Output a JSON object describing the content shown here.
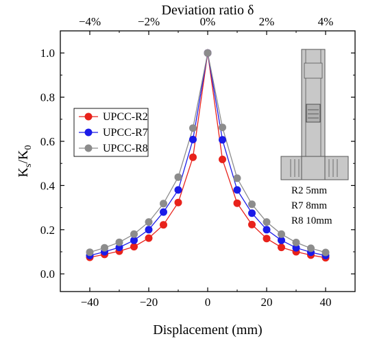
{
  "chart_data": {
    "type": "line",
    "xlabel": "Displacement (mm)",
    "ylabel": "K",
    "ylabel_sub_1": "s",
    "ylabel_slash": "/K",
    "ylabel_sub_2": "0",
    "top_xlabel": "Deviation ratio δ",
    "xlim": [
      -50,
      50
    ],
    "ylim": [
      -0.08,
      1.1
    ],
    "xticks": [
      -40,
      -20,
      0,
      20,
      40
    ],
    "xtick_labels": [
      "−40",
      "−20",
      "0",
      "20",
      "40"
    ],
    "yticks": [
      0.0,
      0.2,
      0.4,
      0.6,
      0.8,
      1.0
    ],
    "ytick_labels": [
      "0.0",
      "0.2",
      "0.4",
      "0.6",
      "0.8",
      "1.0"
    ],
    "top_xticks": [
      -40,
      -20,
      0,
      20,
      40
    ],
    "top_xtick_labels": [
      "−4%",
      "−2%",
      "0%",
      "2%",
      "4%"
    ],
    "x": [
      -40,
      -35,
      -30,
      -25,
      -20,
      -15,
      -10,
      -5,
      0,
      5,
      10,
      15,
      20,
      25,
      30,
      35,
      40
    ],
    "series": [
      {
        "name": "UPCC-R2",
        "color": "#e8221b",
        "values": [
          0.075,
          0.088,
          0.103,
          0.123,
          0.162,
          0.222,
          0.323,
          0.528,
          1.0,
          0.518,
          0.32,
          0.223,
          0.16,
          0.12,
          0.1,
          0.085,
          0.073
        ]
      },
      {
        "name": "UPCC-R7",
        "color": "#1b1be8",
        "values": [
          0.083,
          0.1,
          0.12,
          0.152,
          0.2,
          0.28,
          0.38,
          0.608,
          1.0,
          0.607,
          0.38,
          0.275,
          0.2,
          0.152,
          0.118,
          0.098,
          0.083
        ]
      },
      {
        "name": "UPCC-R8",
        "color": "#8c8c8c",
        "values": [
          0.098,
          0.118,
          0.143,
          0.18,
          0.235,
          0.318,
          0.438,
          0.66,
          1.0,
          0.663,
          0.433,
          0.315,
          0.235,
          0.18,
          0.142,
          0.116,
          0.097
        ]
      }
    ],
    "legend_position": "left-middle",
    "grid": false
  },
  "annotation": {
    "specs": [
      "R2 5mm",
      "R7 8mm",
      "R8 10mm"
    ]
  },
  "colors": {
    "specimen_fill": "#c8c8c8",
    "specimen_stroke": "#555555"
  }
}
